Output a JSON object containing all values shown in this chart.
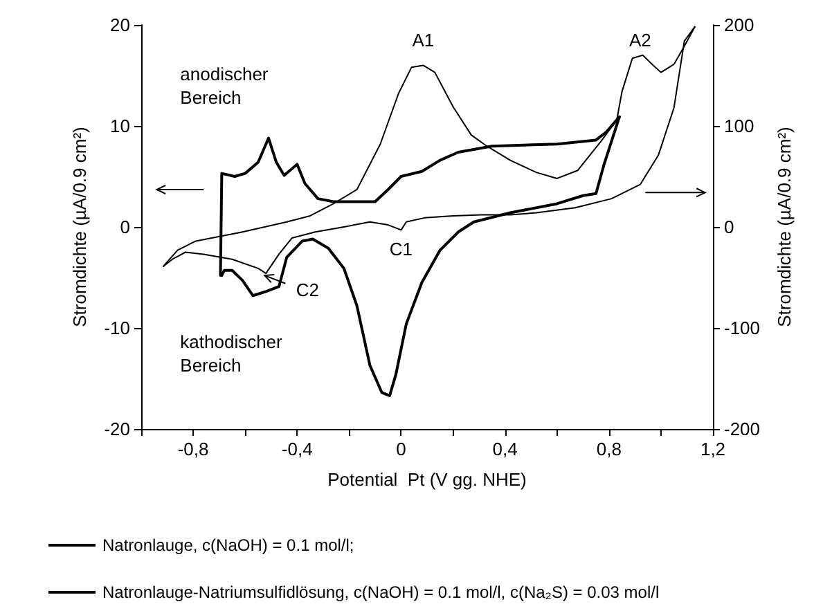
{
  "chart_data": {
    "type": "line",
    "xlabel": "Potential  Pt (V gg. NHE)",
    "ylabel": "Stromdichte (µA/0.9 cm²)",
    "y2label": "Stromdichte (µA/0.9 cm²)",
    "xlim": [
      -1.0,
      1.2
    ],
    "xticks": [
      {
        "value": -1.0,
        "label": null
      },
      {
        "value": -0.8,
        "label": "-0,8"
      },
      {
        "value": -0.6,
        "label": null
      },
      {
        "value": -0.4,
        "label": "-0,4"
      },
      {
        "value": -0.2,
        "label": null
      },
      {
        "value": 0,
        "label": "0"
      },
      {
        "value": 0.2,
        "label": null
      },
      {
        "value": 0.4,
        "label": "0,4"
      },
      {
        "value": 0.6,
        "label": null
      },
      {
        "value": 0.8,
        "label": "0,8"
      },
      {
        "value": 1.0,
        "label": null
      },
      {
        "value": 1.2,
        "label": "1,2"
      }
    ],
    "ylim": [
      -20,
      20
    ],
    "yticks": [
      -20,
      -10,
      0,
      10,
      20
    ],
    "y2lim": [
      -200,
      200
    ],
    "y2ticks": [
      -200,
      -100,
      0,
      100,
      200
    ],
    "grid": false,
    "legend": "bottom",
    "marker": "none",
    "line_style": "solid",
    "series": [
      {
        "name": "Natronlauge, c(NaOH) = 0.1 mol/l;",
        "color": "#000000",
        "axis": "y",
        "x": [
          -0.695,
          -0.69,
          -0.64,
          -0.6,
          -0.55,
          -0.51,
          -0.48,
          -0.45,
          -0.4,
          -0.37,
          -0.32,
          -0.26,
          -0.17,
          -0.1,
          -0.05,
          0.0,
          0.08,
          0.15,
          0.22,
          0.35,
          0.6,
          0.75,
          0.79,
          0.84
        ],
        "values": [
          -4.8,
          5.3,
          5.0,
          5.3,
          6.4,
          8.8,
          6.4,
          5.1,
          6.2,
          4.3,
          2.8,
          2.5,
          2.5,
          2.5,
          3.7,
          5.0,
          5.5,
          6.6,
          7.4,
          8.0,
          8.2,
          8.6,
          9.4,
          10.9
        ]
      },
      {
        "color": "#000000",
        "axis": "y",
        "x": [
          -0.69,
          -0.68,
          -0.65,
          -0.61,
          -0.57,
          -0.52,
          -0.47,
          -0.44,
          -0.38,
          -0.34,
          -0.28,
          -0.22,
          -0.17,
          -0.12,
          -0.074,
          -0.044,
          -0.02,
          0.02,
          0.08,
          0.15,
          0.22,
          0.28,
          0.42,
          0.6,
          0.7,
          0.75,
          0.78,
          0.84
        ],
        "values": [
          -4.8,
          -4.3,
          -4.3,
          -5.3,
          -6.8,
          -6.4,
          -5.9,
          -3.0,
          -1.4,
          -1.2,
          -2.1,
          -4.1,
          -7.8,
          -13.7,
          -16.4,
          -16.7,
          -14.6,
          -9.6,
          -5.5,
          -2.3,
          -0.5,
          0.5,
          1.4,
          2.3,
          3.1,
          3.3,
          6.1,
          10.9
        ]
      },
      {
        "name": "Natronlauge-Natriumsulfidlösung, c(NaOH) = 0.1 mol/l, c(Na₂S) = 0.03 mol/l",
        "color": "#000000",
        "axis": "y2",
        "x": [
          -0.915,
          -0.86,
          -0.79,
          -0.61,
          -0.44,
          -0.35,
          -0.26,
          -0.17,
          -0.08,
          -0.01,
          0.04,
          0.085,
          0.13,
          0.2,
          0.27,
          0.33,
          0.42,
          0.52,
          0.6,
          0.68,
          0.77,
          0.83,
          0.85,
          0.89,
          0.93,
          0.97,
          1.0,
          1.05,
          1.09,
          1.13
        ],
        "values": [
          -39,
          -23,
          -14,
          -5,
          5,
          11,
          23,
          37,
          82,
          132,
          158,
          160,
          153,
          119,
          91,
          80,
          66,
          54,
          48,
          56,
          85,
          106,
          134,
          167,
          170,
          160,
          153,
          161,
          179,
          198
        ]
      },
      {
        "color": "#000000",
        "axis": "y2",
        "x": [
          -0.915,
          -0.88,
          -0.83,
          -0.76,
          -0.65,
          -0.55,
          -0.52,
          -0.47,
          -0.42,
          -0.33,
          -0.22,
          -0.12,
          -0.05,
          0.0,
          0.02,
          0.09,
          0.2,
          0.31,
          0.42,
          0.52,
          0.67,
          0.81,
          0.92,
          0.99,
          1.05,
          1.09,
          1.13
        ],
        "values": [
          -39,
          -32,
          -25,
          -27,
          -32,
          -41,
          -46,
          -27,
          -11,
          -5,
          0,
          5,
          2,
          -3,
          5,
          9,
          11,
          12,
          12,
          14,
          19,
          28,
          42,
          71,
          118,
          184,
          198
        ]
      }
    ],
    "annotations": [
      "anodischer\nBereich",
      "kathodischer\nBereich",
      "A1",
      "A2",
      "C1",
      "C2"
    ]
  }
}
